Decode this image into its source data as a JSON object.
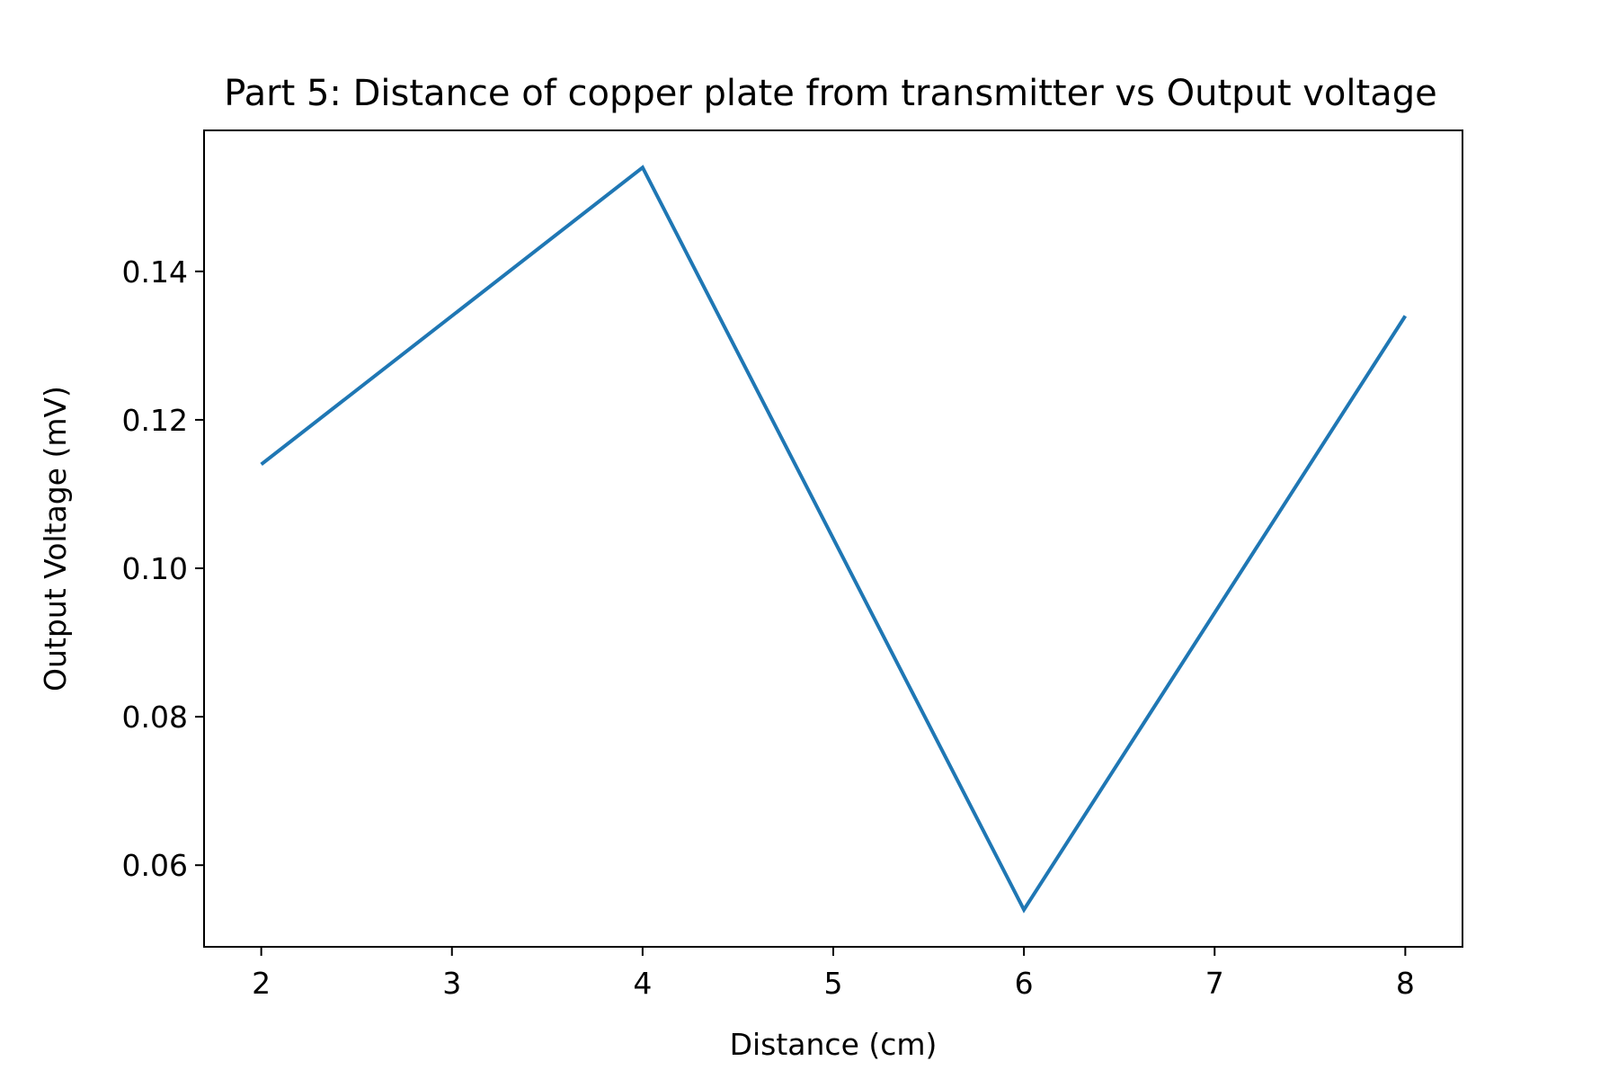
{
  "chart_data": {
    "type": "line",
    "title": "Part 5: Distance of copper plate from transmitter vs Output voltage",
    "xlabel": "Distance (cm)",
    "ylabel": "Output Voltage (mV)",
    "x": [
      2,
      4,
      6,
      8
    ],
    "series": [
      {
        "values": [
          0.114,
          0.154,
          0.054,
          0.134
        ],
        "color": "#1f77b4"
      }
    ],
    "xlim": [
      1.7,
      8.3
    ],
    "ylim": [
      0.049,
      0.159
    ],
    "xticks": [
      2,
      3,
      4,
      5,
      6,
      7,
      8
    ],
    "xtick_labels": [
      "2",
      "3",
      "4",
      "5",
      "6",
      "7",
      "8"
    ],
    "yticks": [
      0.06,
      0.08,
      0.1,
      0.12,
      0.14
    ],
    "ytick_labels": [
      "0.06",
      "0.08",
      "0.10",
      "0.12",
      "0.14"
    ],
    "grid": false,
    "legend": false
  }
}
